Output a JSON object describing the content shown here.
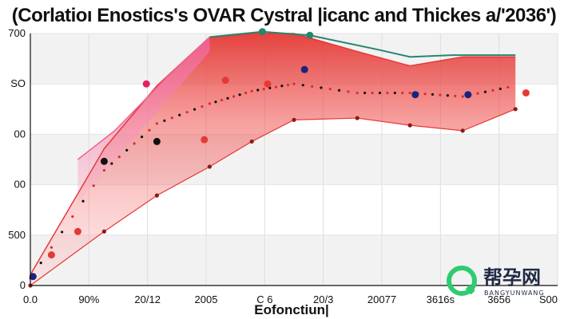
{
  "chart_data": {
    "type": "area",
    "title": "(Corlatioı Enostics's OVAR Cystral |icanc and Thickes a/'2036')",
    "xlabel": "Eofonctiun|",
    "ylabel": "",
    "x_tick_labels": [
      "0.0",
      "90%",
      "20/12",
      "2005",
      "C 6",
      "20/3",
      "20077",
      "3616s",
      "3656",
      "S00"
    ],
    "y_tick_labels": [
      "0",
      "500",
      "00",
      "00",
      "SO",
      "700"
    ],
    "xlim": [
      0,
      10
    ],
    "ylim": [
      0,
      700
    ],
    "grid": true,
    "series": [
      {
        "color": "#e53935",
        "x": [
          0,
          1.4,
          2.4,
          3.4,
          4.2,
          5.0,
          6.2,
          7.2,
          8.2,
          9.2
        ],
        "upper": [
          30,
          380,
          555,
          690,
          700,
          700,
          650,
          610,
          635,
          635
        ],
        "lower": [
          0,
          150,
          250,
          330,
          400,
          460,
          465,
          445,
          430,
          490
        ],
        "mid": [
          20,
          320,
          450,
          505,
          540,
          560,
          535,
          535,
          525,
          555
        ]
      },
      {
        "color": "#f06292",
        "x": [
          0.9,
          1.6,
          2.6,
          3.4
        ],
        "upper": [
          350,
          430,
          580,
          690
        ]
      },
      {
        "color": "#26856f",
        "x": [
          3.4,
          4.4,
          5.3,
          6.6,
          7.2,
          8.0,
          9.2
        ],
        "upper": [
          690,
          705,
          695,
          655,
          635,
          640,
          640
        ]
      }
    ],
    "points": [
      {
        "x": 0.05,
        "y": 25,
        "color": "#1a237e"
      },
      {
        "x": 0.4,
        "y": 85,
        "color": "#e53935"
      },
      {
        "x": 0.9,
        "y": 150,
        "color": "#e53935"
      },
      {
        "x": 1.4,
        "y": 345,
        "color": "#111111"
      },
      {
        "x": 2.4,
        "y": 400,
        "color": "#111111"
      },
      {
        "x": 3.3,
        "y": 405,
        "color": "#e53935"
      },
      {
        "x": 3.7,
        "y": 570,
        "color": "#e53935"
      },
      {
        "x": 4.5,
        "y": 560,
        "color": "#e53935"
      },
      {
        "x": 5.2,
        "y": 600,
        "color": "#1a237e"
      },
      {
        "x": 7.3,
        "y": 530,
        "color": "#1a237e"
      },
      {
        "x": 8.3,
        "y": 530,
        "color": "#1a237e"
      },
      {
        "x": 9.4,
        "y": 535,
        "color": "#e53935"
      },
      {
        "x": 2.2,
        "y": 560,
        "color": "#e91e63"
      },
      {
        "x": 4.4,
        "y": 705,
        "color": "#26856f"
      },
      {
        "x": 5.3,
        "y": 695,
        "color": "#26856f"
      }
    ]
  },
  "watermark": {
    "text": "帮孕网",
    "subtext": "BANGYUNWANG",
    "color": "#2ecc71"
  }
}
